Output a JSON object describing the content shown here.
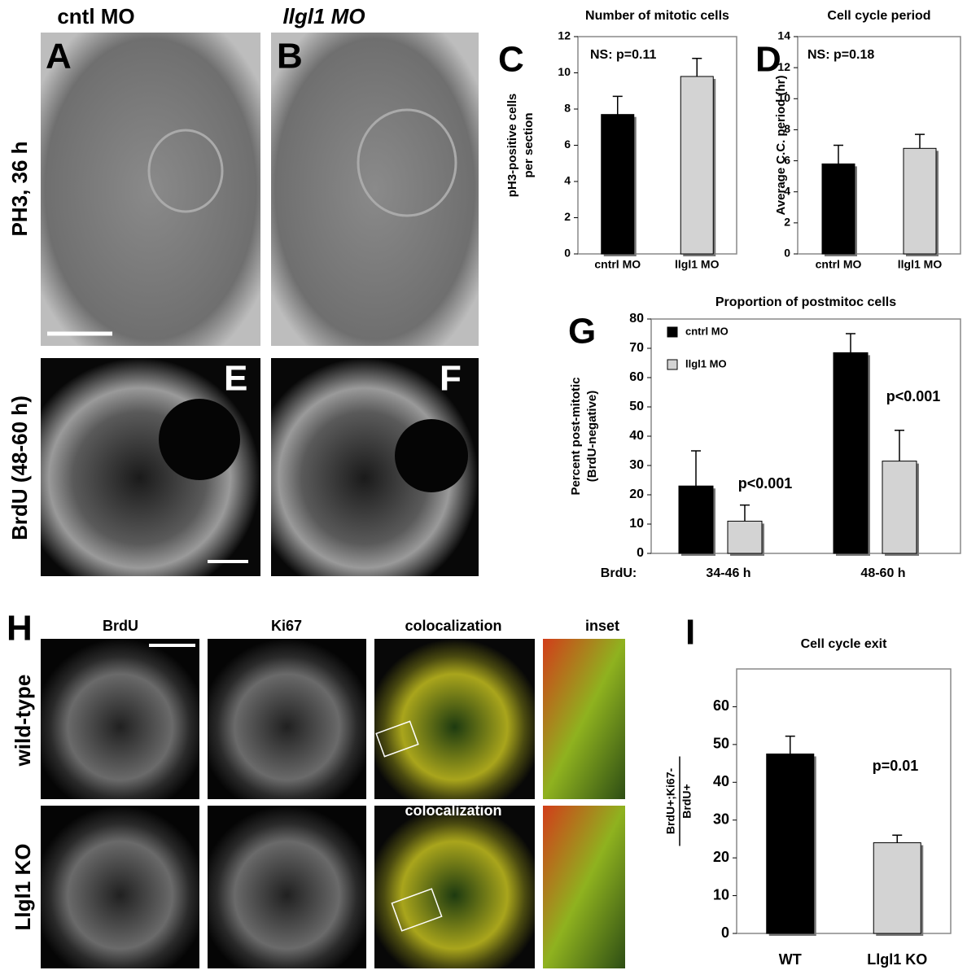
{
  "figure": {
    "headers": [
      "cntl MO",
      "llgl1 MO"
    ],
    "row_labels": [
      "PH3, 36 h",
      "BrdU (48-60 h)"
    ],
    "image_letters": [
      "A",
      "B",
      "E",
      "F"
    ],
    "H": {
      "letter": "H",
      "columns": [
        "BrdU",
        "Ki67",
        "colocalization",
        "inset"
      ],
      "rows": [
        "wild-type",
        "Llgl1 KO"
      ],
      "row2_column": "colocalization"
    }
  },
  "chart_data": [
    {
      "type": "bar",
      "panel_label": "C",
      "title": "Number of mitotic cells",
      "ylabel": [
        "pH3-positive cells",
        "per section"
      ],
      "categories": [
        "cntrl MO",
        "llgl1 MO"
      ],
      "values": [
        7.7,
        9.8
      ],
      "errors": [
        1.0,
        1.0
      ],
      "colors": [
        "#000000",
        "#d3d3d3"
      ],
      "ylim": [
        0,
        12
      ],
      "yticks": [
        0,
        2,
        4,
        6,
        8,
        10,
        12
      ],
      "annotation": "NS: p=0.11"
    },
    {
      "type": "bar",
      "panel_label": "D",
      "title": "Cell cycle period",
      "ylabel": [
        "Average C.C. period (hr)"
      ],
      "categories": [
        "cntrl MO",
        "llgl1 MO"
      ],
      "values": [
        5.8,
        6.8
      ],
      "errors": [
        1.2,
        0.9
      ],
      "colors": [
        "#000000",
        "#d3d3d3"
      ],
      "ylim": [
        0,
        14
      ],
      "yticks": [
        0,
        2,
        4,
        6,
        8,
        10,
        12,
        14
      ],
      "annotation": "NS: p=0.18"
    },
    {
      "type": "bar",
      "panel_label": "G",
      "title": "Proportion of postmitoc cells",
      "ylabel": [
        "Percent post-mitotic",
        "(BrdU-negative)"
      ],
      "xlabel": "BrdU:",
      "categories": [
        "34-46 h",
        "48-60 h"
      ],
      "series": [
        {
          "name": "cntrl MO",
          "color": "#000000",
          "values": [
            23,
            68.5
          ],
          "errors": [
            12,
            6.5
          ]
        },
        {
          "name": "llgl1 MO",
          "color": "#d3d3d3",
          "values": [
            11,
            31.5
          ],
          "errors": [
            5.5,
            10.5
          ]
        }
      ],
      "ylim": [
        0,
        80
      ],
      "yticks": [
        0,
        10,
        20,
        30,
        40,
        50,
        60,
        70,
        80
      ],
      "annotations": [
        "p<0.001",
        "p<0.001"
      ],
      "legend": "top-left"
    },
    {
      "type": "bar",
      "panel_label": "I",
      "title": "Cell cycle exit",
      "ylabel_fraction": {
        "numerator": "BrdU+;Ki67-",
        "denominator": "BrdU+"
      },
      "categories": [
        "WT",
        "Llgl1 KO"
      ],
      "values": [
        47.5,
        24
      ],
      "errors": [
        4.7,
        2
      ],
      "colors": [
        "#000000",
        "#d3d3d3"
      ],
      "ylim": [
        0,
        70
      ],
      "yticks": [
        0,
        10,
        20,
        30,
        40,
        50,
        60
      ],
      "annotation": "p=0.01"
    }
  ]
}
